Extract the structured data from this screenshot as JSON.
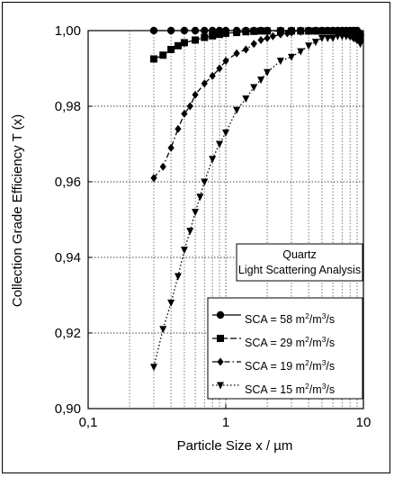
{
  "chart_data": {
    "type": "line",
    "title": "",
    "xlabel": "Particle Size  x / µm",
    "ylabel": "Collection Grade Efficiency   T (x)",
    "xscale": "log",
    "xlim": [
      0.1,
      10
    ],
    "ylim": [
      0.9,
      1.0
    ],
    "grid": true,
    "x_ticks": [
      0.1,
      1,
      10
    ],
    "x_tick_labels": [
      "0,1",
      "1",
      "10"
    ],
    "y_ticks": [
      0.9,
      0.92,
      0.94,
      0.96,
      0.98,
      1.0
    ],
    "y_tick_labels": [
      "0,90",
      "0,92",
      "0,94",
      "0,96",
      "0,98",
      "1,00"
    ],
    "annotation_box": [
      "Quartz",
      "Light Scattering Analysis"
    ],
    "legend_placement": "bottom-right",
    "series": [
      {
        "name_parts": [
          "SCA = 58 m",
          "2",
          "/m",
          "3",
          "/s"
        ],
        "marker": "circle",
        "line": "solid",
        "x": [
          0.3,
          0.4,
          0.5,
          0.6,
          0.7,
          0.8,
          0.9,
          1.0,
          1.2,
          1.4,
          1.6,
          1.8,
          2.0,
          2.5,
          3.0,
          3.5,
          4.0,
          4.5,
          5.0,
          5.5,
          6.0,
          6.5,
          7.0,
          7.5,
          8.0,
          8.5,
          9.0,
          9.5
        ],
        "y": [
          1.0,
          1.0,
          1.0,
          1.0,
          1.0,
          1.0,
          1.0,
          1.0,
          1.0,
          1.0,
          1.0,
          1.0,
          1.0,
          1.0,
          1.0,
          1.0,
          1.0,
          1.0,
          1.0,
          1.0,
          1.0,
          1.0,
          1.0,
          1.0,
          1.0,
          1.0,
          1.0,
          0.999
        ]
      },
      {
        "name_parts": [
          "SCA = 29 m",
          "2",
          "/m",
          "3",
          "/s"
        ],
        "marker": "square",
        "line": "dashed",
        "x": [
          0.3,
          0.35,
          0.4,
          0.45,
          0.5,
          0.6,
          0.7,
          0.8,
          0.9,
          1.0,
          1.2,
          1.4,
          1.6,
          1.8,
          2.0,
          2.5,
          3.0,
          3.5,
          4.0,
          4.5,
          5.0,
          5.5,
          6.0,
          6.5,
          7.0,
          7.5,
          8.0,
          8.5,
          9.0,
          9.5
        ],
        "y": [
          0.9925,
          0.9935,
          0.995,
          0.996,
          0.9968,
          0.9975,
          0.9982,
          0.9986,
          0.999,
          0.9993,
          0.9995,
          0.9997,
          0.9998,
          0.9999,
          0.9999,
          0.9999,
          0.9999,
          0.9999,
          0.9999,
          0.9999,
          0.9999,
          0.9999,
          0.9999,
          0.9999,
          0.9999,
          0.9999,
          0.9999,
          0.9999,
          0.9985,
          0.998
        ]
      },
      {
        "name_parts": [
          "SCA = 19 m",
          "2",
          "/m",
          "3",
          "/s"
        ],
        "marker": "diamond",
        "line": "dashdot",
        "x": [
          0.3,
          0.35,
          0.4,
          0.45,
          0.5,
          0.55,
          0.6,
          0.7,
          0.8,
          0.9,
          1.0,
          1.2,
          1.4,
          1.6,
          1.8,
          2.0,
          2.2,
          2.5,
          2.8,
          3.0,
          3.5,
          4.0,
          4.5,
          5.0,
          5.5,
          6.0,
          6.5,
          7.0,
          7.5,
          8.0,
          8.5,
          9.0,
          9.5
        ],
        "y": [
          0.961,
          0.964,
          0.969,
          0.974,
          0.978,
          0.98,
          0.983,
          0.986,
          0.988,
          0.99,
          0.992,
          0.994,
          0.995,
          0.9965,
          0.9975,
          0.998,
          0.9985,
          0.999,
          0.9993,
          0.9995,
          0.9997,
          0.9998,
          0.9999,
          0.9999,
          0.9999,
          0.9999,
          0.9998,
          0.9995,
          0.999,
          0.9985,
          0.998,
          0.9975,
          0.997
        ]
      },
      {
        "name_parts": [
          "SCA = 15 m",
          "2",
          "/m",
          "3",
          "/s"
        ],
        "marker": "triangle-down",
        "line": "dotted",
        "x": [
          0.3,
          0.35,
          0.4,
          0.45,
          0.5,
          0.55,
          0.6,
          0.65,
          0.7,
          0.8,
          0.9,
          1.0,
          1.2,
          1.4,
          1.6,
          1.8,
          2.0,
          2.5,
          3.0,
          3.5,
          4.0,
          4.5,
          5.0,
          5.5,
          6.0,
          6.5,
          7.0,
          7.5,
          8.0,
          8.5,
          9.0,
          9.5
        ],
        "y": [
          0.911,
          0.921,
          0.928,
          0.935,
          0.942,
          0.947,
          0.952,
          0.956,
          0.96,
          0.966,
          0.97,
          0.973,
          0.979,
          0.982,
          0.985,
          0.987,
          0.989,
          0.992,
          0.993,
          0.9945,
          0.996,
          0.997,
          0.998,
          0.998,
          0.998,
          0.9985,
          0.9985,
          0.9985,
          0.9985,
          0.998,
          0.9975,
          0.9965
        ]
      }
    ]
  }
}
